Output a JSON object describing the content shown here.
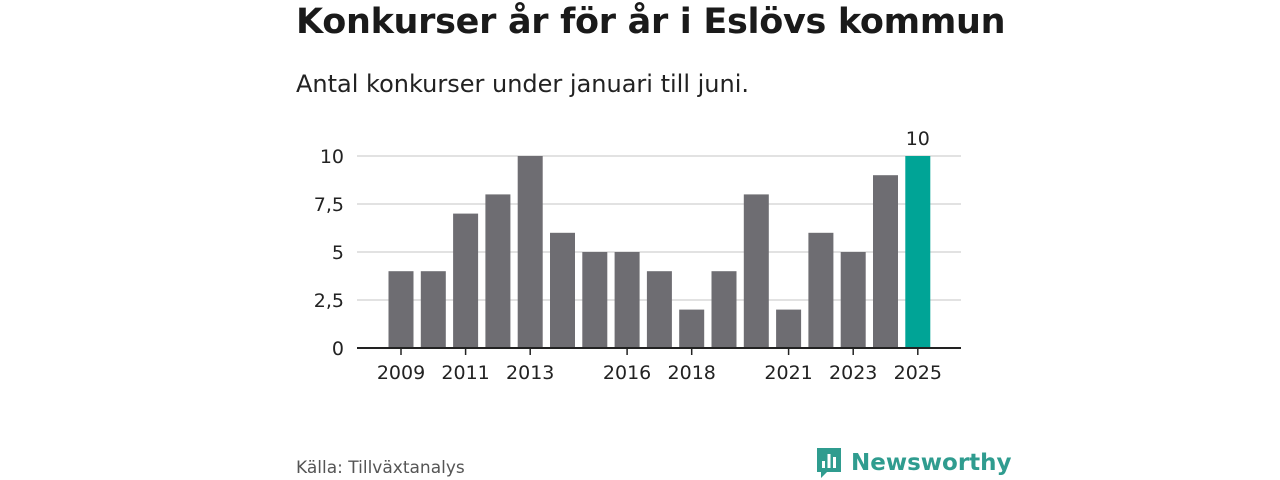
{
  "header": {
    "title": "Konkurser år för år i Eslövs kommun",
    "subtitle": "Antal konkurser under januari till juni."
  },
  "footer": {
    "source": "Källa: Tillväxtanalys",
    "brand": "Newsworthy"
  },
  "colors": {
    "bar": "#6e6d72",
    "highlight": "#00a496",
    "grid": "#d9d9d9",
    "axis": "#222222",
    "brand": "#2f9c8f"
  },
  "chart_data": {
    "type": "bar",
    "title": "Konkurser år för år i Eslövs kommun",
    "subtitle": "Antal konkurser under januari till juni.",
    "categories": [
      "2009",
      "2010",
      "2011",
      "2012",
      "2013",
      "2014",
      "2015",
      "2016",
      "2017",
      "2018",
      "2019",
      "2020",
      "2021",
      "2022",
      "2023",
      "2024",
      "2025"
    ],
    "values": [
      4,
      4,
      7,
      8,
      10,
      6,
      5,
      5,
      4,
      2,
      4,
      8,
      2,
      6,
      5,
      9,
      10
    ],
    "highlight_index": 16,
    "highlight_label": "10",
    "x_tick_labels": [
      "2009",
      "2011",
      "2013",
      "2016",
      "2018",
      "2021",
      "2023",
      "2025"
    ],
    "y_ticks": [
      0,
      2.5,
      5,
      7.5,
      10
    ],
    "y_tick_labels": [
      "0",
      "2,5",
      "5",
      "7,5",
      "10"
    ],
    "ylim": [
      0,
      10
    ],
    "xlabel": "",
    "ylabel": "",
    "grid": true,
    "legend": "none"
  }
}
